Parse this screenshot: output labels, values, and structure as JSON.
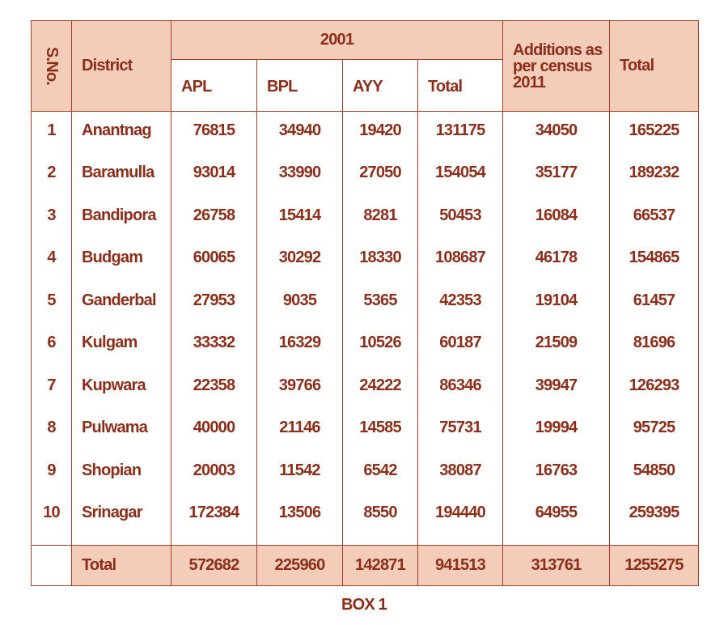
{
  "table": {
    "header": {
      "sno": "S.No.",
      "district": "District",
      "group": "2001",
      "sub": [
        "APL",
        "BPL",
        "AYY",
        "Total"
      ],
      "additions": "Additions as per census 2011",
      "total": "Total"
    },
    "rows": [
      [
        1,
        "Anantnag",
        76815,
        34940,
        19420,
        131175,
        34050,
        165225
      ],
      [
        2,
        "Baramulla",
        93014,
        33990,
        27050,
        154054,
        35177,
        189232
      ],
      [
        3,
        "Bandipora",
        26758,
        15414,
        8281,
        50453,
        16084,
        66537
      ],
      [
        4,
        "Budgam",
        60065,
        30292,
        18330,
        108687,
        46178,
        154865
      ],
      [
        5,
        "Ganderbal",
        27953,
        9035,
        5365,
        42353,
        19104,
        61457
      ],
      [
        6,
        "Kulgam",
        33332,
        16329,
        10526,
        60187,
        21509,
        81696
      ],
      [
        7,
        "Kupwara",
        22358,
        39766,
        24222,
        86346,
        39947,
        126293
      ],
      [
        8,
        "Pulwama",
        40000,
        21146,
        14585,
        75731,
        19994,
        95725
      ],
      [
        9,
        "Shopian",
        20003,
        11542,
        6542,
        38087,
        16763,
        54850
      ],
      [
        10,
        "Srinagar",
        172384,
        13506,
        8550,
        194440,
        64955,
        259395
      ]
    ],
    "total_row": [
      "Total",
      572682,
      225960,
      142871,
      941513,
      313761,
      1255275
    ]
  },
  "caption": "BOX 1"
}
